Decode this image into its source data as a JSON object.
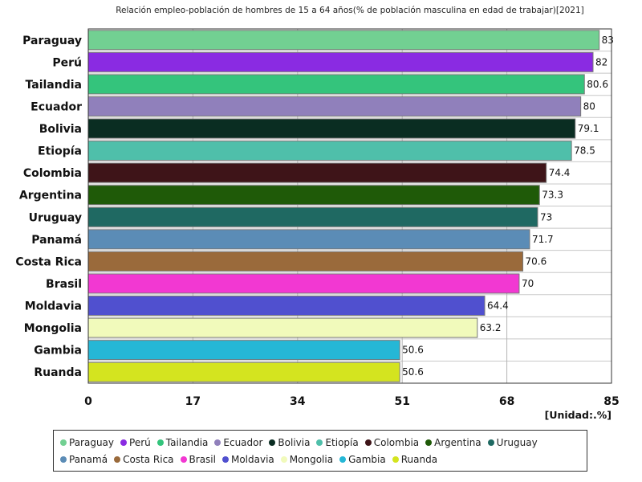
{
  "chart_data": {
    "type": "bar",
    "orientation": "horizontal",
    "title": "Relación empleo-población de hombres de 15 a 64 años(% de población masculina en edad de trabajar)[2021]",
    "unit_label": "[Unidad:.%]",
    "categories": [
      "Paraguay",
      "Perú",
      "Tailandia",
      "Ecuador",
      "Bolivia",
      "Etiopía",
      "Colombia",
      "Argentina",
      "Uruguay",
      "Panamá",
      "Costa Rica",
      "Brasil",
      "Moldavia",
      "Mongolia",
      "Gambia",
      "Ruanda"
    ],
    "values": [
      83,
      82,
      80.6,
      80,
      79.1,
      78.5,
      74.4,
      73.3,
      73,
      71.7,
      70.6,
      70,
      64.4,
      63.2,
      50.6,
      50.6
    ],
    "value_labels": [
      "83",
      "82",
      "80.6",
      "80",
      "79.1",
      "78.5",
      "74.4",
      "73.3",
      "73",
      "71.7",
      "70.6",
      "70",
      "64.4",
      "63.2",
      "50.6",
      "50.6"
    ],
    "colors": [
      "#72d092",
      "#8a2be2",
      "#34c47c",
      "#9080bb",
      "#0a2d22",
      "#4fbfaa",
      "#3e1418",
      "#1f5a08",
      "#1f6962",
      "#5b8cb6",
      "#9a6a3b",
      "#f238d2",
      "#5050cf",
      "#f1fabb",
      "#25b7d6",
      "#d4e41f"
    ],
    "xlim": [
      0,
      85
    ],
    "xticks": [
      0,
      17,
      34,
      51,
      68,
      85
    ],
    "xtick_labels": [
      "0",
      "17",
      "34",
      "51",
      "68",
      "85"
    ],
    "grid": true,
    "legend_position": "bottom"
  }
}
